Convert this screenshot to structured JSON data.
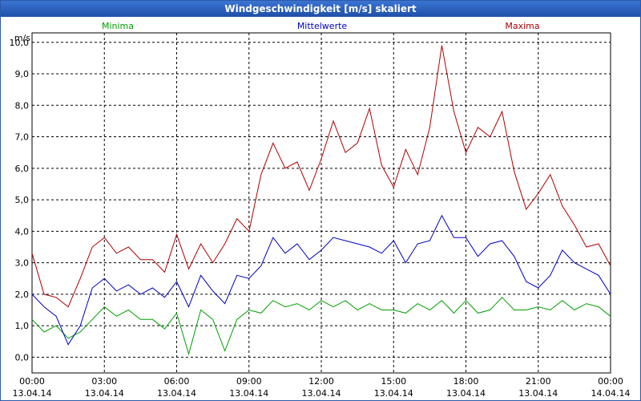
{
  "window": {
    "title": "Windgeschwindigkeit [m/s] skaliert"
  },
  "chart_data": {
    "type": "line",
    "title": "Windgeschwindigkeit [m/s] skaliert",
    "ylabel": "m/s",
    "xlabel": "",
    "ylim": [
      -0.5,
      10.3
    ],
    "xlim": [
      0,
      24
    ],
    "grid": true,
    "legend": "top",
    "yticks": [
      0,
      1,
      2,
      3,
      4,
      5,
      6,
      7,
      8,
      9,
      10
    ],
    "ytick_labels": [
      "0,0",
      "1,0",
      "2,0",
      "3,0",
      "4,0",
      "5,0",
      "6,0",
      "7,0",
      "8,0",
      "9,0",
      "10,0"
    ],
    "xticks": [
      0,
      3,
      6,
      9,
      12,
      15,
      18,
      21,
      24
    ],
    "xtick_labels": [
      [
        "00:00",
        "13.04.14"
      ],
      [
        "03:00",
        "13.04.14"
      ],
      [
        "06:00",
        "13.04.14"
      ],
      [
        "09:00",
        "13.04.14"
      ],
      [
        "12:00",
        "13.04.14"
      ],
      [
        "15:00",
        "13.04.14"
      ],
      [
        "18:00",
        "13.04.14"
      ],
      [
        "21:00",
        "13.04.14"
      ],
      [
        "00:00",
        "14.04.14"
      ]
    ],
    "x": [
      0,
      0.5,
      1,
      1.5,
      2,
      2.5,
      3,
      3.5,
      4,
      4.5,
      5,
      5.5,
      6,
      6.5,
      7,
      7.5,
      8,
      8.5,
      9,
      9.5,
      10,
      10.5,
      11,
      11.5,
      12,
      12.5,
      13,
      13.5,
      14,
      14.5,
      15,
      15.5,
      16,
      16.5,
      17,
      17.5,
      18,
      18.5,
      19,
      19.5,
      20,
      20.5,
      21,
      21.5,
      22,
      22.5,
      23,
      23.5,
      24
    ],
    "series": [
      {
        "name": "Minima",
        "color": "#00a000",
        "values": [
          1.2,
          0.8,
          1.0,
          0.6,
          0.8,
          1.2,
          1.6,
          1.3,
          1.5,
          1.2,
          1.2,
          0.9,
          1.4,
          0.1,
          1.5,
          1.2,
          0.2,
          1.2,
          1.5,
          1.4,
          1.8,
          1.6,
          1.7,
          1.5,
          1.8,
          1.6,
          1.8,
          1.5,
          1.7,
          1.5,
          1.5,
          1.4,
          1.7,
          1.5,
          1.8,
          1.4,
          1.8,
          1.4,
          1.5,
          1.9,
          1.5,
          1.5,
          1.6,
          1.5,
          1.8,
          1.5,
          1.7,
          1.6,
          1.3
        ]
      },
      {
        "name": "Mittelwerte",
        "color": "#0000c0",
        "values": [
          2.0,
          1.6,
          1.3,
          0.4,
          1.0,
          2.2,
          2.5,
          2.1,
          2.3,
          2.0,
          2.2,
          1.9,
          2.4,
          1.6,
          2.6,
          2.1,
          1.7,
          2.6,
          2.5,
          2.9,
          3.8,
          3.3,
          3.6,
          3.1,
          3.4,
          3.8,
          3.7,
          3.6,
          3.5,
          3.3,
          3.7,
          3.0,
          3.6,
          3.7,
          4.5,
          3.8,
          3.8,
          3.2,
          3.6,
          3.7,
          3.2,
          2.4,
          2.2,
          2.6,
          3.4,
          3.0,
          2.8,
          2.6,
          2.0
        ]
      },
      {
        "name": "Maxima",
        "color": "#b00000",
        "values": [
          3.3,
          2.0,
          1.9,
          1.6,
          2.5,
          3.5,
          3.8,
          3.3,
          3.5,
          3.1,
          3.1,
          2.7,
          3.9,
          2.8,
          3.6,
          3.0,
          3.6,
          4.4,
          4.0,
          5.8,
          6.8,
          6.0,
          6.2,
          5.3,
          6.3,
          7.5,
          6.5,
          6.8,
          7.9,
          6.1,
          5.4,
          6.6,
          5.8,
          7.3,
          9.9,
          7.8,
          6.5,
          7.3,
          7.0,
          7.8,
          5.9,
          4.7,
          5.2,
          5.8,
          4.8,
          4.2,
          3.5,
          3.6,
          2.9
        ]
      }
    ]
  }
}
